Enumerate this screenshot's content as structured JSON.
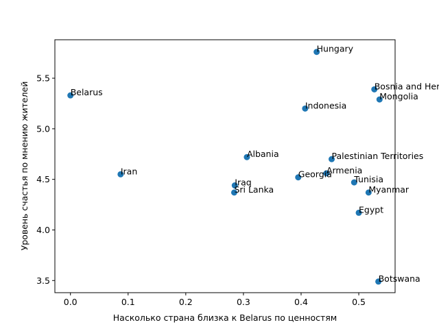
{
  "chart_data": {
    "type": "scatter",
    "xlabel": "Насколько страна близка к Belarus по ценностям",
    "ylabel": "Уровень счастья по мнению жителей",
    "xlim": [
      -0.027,
      0.563
    ],
    "ylim": [
      3.38,
      5.88
    ],
    "xticks": [
      "0.0",
      "0.1",
      "0.2",
      "0.3",
      "0.4",
      "0.5"
    ],
    "yticks": [
      "3.5",
      "4.0",
      "4.5",
      "5.0",
      "5.5"
    ],
    "grid": false,
    "point_color": "#1f77b4",
    "points": [
      {
        "label": "Belarus",
        "x": 0.0,
        "y": 5.33
      },
      {
        "label": "Iran",
        "x": 0.087,
        "y": 4.55
      },
      {
        "label": "Iraq",
        "x": 0.285,
        "y": 4.44
      },
      {
        "label": "Sri Lanka",
        "x": 0.284,
        "y": 4.37
      },
      {
        "label": "Albania",
        "x": 0.306,
        "y": 4.72
      },
      {
        "label": "Georgia",
        "x": 0.395,
        "y": 4.52
      },
      {
        "label": "Indonesia",
        "x": 0.407,
        "y": 5.2
      },
      {
        "label": "Hungary",
        "x": 0.427,
        "y": 5.76
      },
      {
        "label": "Armenia",
        "x": 0.444,
        "y": 4.56
      },
      {
        "label": "Palestinian Territories",
        "x": 0.453,
        "y": 4.7
      },
      {
        "label": "Tunisia",
        "x": 0.492,
        "y": 4.47
      },
      {
        "label": "Egypt",
        "x": 0.5,
        "y": 4.17
      },
      {
        "label": "Myanmar",
        "x": 0.517,
        "y": 4.37
      },
      {
        "label": "Bosnia and Herzegovina",
        "x": 0.527,
        "y": 5.39
      },
      {
        "label": "Mongolia",
        "x": 0.536,
        "y": 5.29
      },
      {
        "label": "Botswana",
        "x": 0.534,
        "y": 3.49
      }
    ]
  }
}
